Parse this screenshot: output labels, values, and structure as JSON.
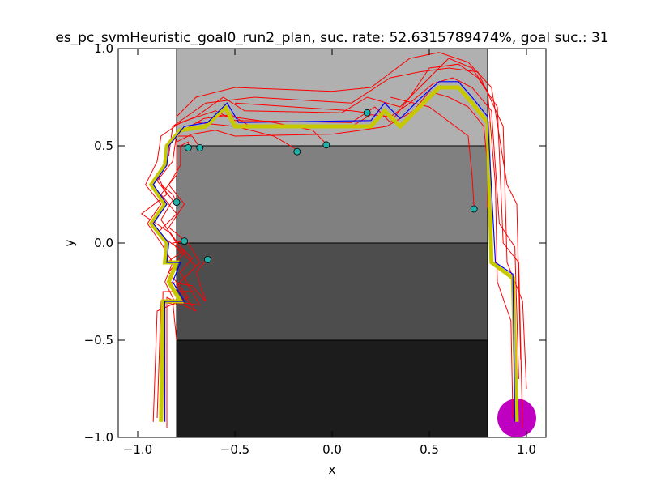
{
  "chart_data": {
    "type": "line",
    "title": "es_pc_svmHeuristic_goal0_run2_plan, suc. rate: 52.6315789474%, goal suc.: 31",
    "xlabel": "x",
    "ylabel": "y",
    "xlim": [
      -1.1,
      1.1
    ],
    "ylim": [
      -1.0,
      1.0
    ],
    "xticks": [
      {
        "value": -1.0,
        "label": "−1.0"
      },
      {
        "value": -0.5,
        "label": "−0.5"
      },
      {
        "value": 0.0,
        "label": "0.0"
      },
      {
        "value": 0.5,
        "label": "0.5"
      },
      {
        "value": 1.0,
        "label": "1.0"
      }
    ],
    "yticks": [
      {
        "value": -1.0,
        "label": "−1.0"
      },
      {
        "value": -0.5,
        "label": "−0.5"
      },
      {
        "value": 0.0,
        "label": "0.0"
      },
      {
        "value": 0.5,
        "label": "0.5"
      },
      {
        "value": 1.0,
        "label": "1.0"
      }
    ],
    "grid": false,
    "regions": [
      {
        "x": [
          -0.8,
          0.8
        ],
        "y": [
          0.5,
          1.0
        ],
        "color": "#b0b0b0"
      },
      {
        "x": [
          -0.8,
          0.8
        ],
        "y": [
          0.0,
          0.5
        ],
        "color": "#808080"
      },
      {
        "x": [
          -0.8,
          0.8
        ],
        "y": [
          -0.5,
          0.0
        ],
        "color": "#4d4d4d"
      },
      {
        "x": [
          -0.8,
          0.8
        ],
        "y": [
          -1.0,
          -0.5
        ],
        "color": "#1c1c1c"
      }
    ],
    "goal": {
      "x": 0.95,
      "y": -0.9,
      "radius": 0.1,
      "color": "#c000c0"
    },
    "plan_yellow": {
      "color": "#c8c800",
      "points": [
        [
          -0.88,
          -0.92
        ],
        [
          -0.87,
          -0.3
        ],
        [
          -0.78,
          -0.3
        ],
        [
          -0.84,
          -0.2
        ],
        [
          -0.8,
          -0.1
        ],
        [
          -0.86,
          -0.1
        ],
        [
          -0.85,
          0.0
        ],
        [
          -0.93,
          0.1
        ],
        [
          -0.86,
          0.2
        ],
        [
          -0.93,
          0.3
        ],
        [
          -0.86,
          0.4
        ],
        [
          -0.85,
          0.5
        ],
        [
          -0.78,
          0.58
        ],
        [
          -0.65,
          0.6
        ],
        [
          -0.55,
          0.7
        ],
        [
          -0.5,
          0.6
        ],
        [
          0.2,
          0.6
        ],
        [
          0.27,
          0.68
        ],
        [
          0.35,
          0.6
        ],
        [
          0.45,
          0.7
        ],
        [
          0.55,
          0.8
        ],
        [
          0.65,
          0.8
        ],
        [
          0.72,
          0.72
        ],
        [
          0.8,
          0.62
        ],
        [
          0.82,
          -0.1
        ],
        [
          0.93,
          -0.18
        ],
        [
          0.95,
          -0.92
        ]
      ]
    },
    "plan_blue": {
      "color": "#0000ff",
      "points": [
        [
          -0.86,
          -0.92
        ],
        [
          -0.86,
          -0.3
        ],
        [
          -0.76,
          -0.3
        ],
        [
          -0.82,
          -0.2
        ],
        [
          -0.78,
          -0.1
        ],
        [
          -0.85,
          -0.1
        ],
        [
          -0.84,
          0.0
        ],
        [
          -0.92,
          0.1
        ],
        [
          -0.85,
          0.2
        ],
        [
          -0.92,
          0.3
        ],
        [
          -0.85,
          0.4
        ],
        [
          -0.84,
          0.5
        ],
        [
          -0.76,
          0.6
        ],
        [
          -0.64,
          0.62
        ],
        [
          -0.54,
          0.72
        ],
        [
          -0.48,
          0.62
        ],
        [
          0.2,
          0.63
        ],
        [
          0.27,
          0.72
        ],
        [
          0.35,
          0.64
        ],
        [
          0.45,
          0.74
        ],
        [
          0.55,
          0.83
        ],
        [
          0.65,
          0.83
        ],
        [
          0.72,
          0.75
        ],
        [
          0.8,
          0.65
        ],
        [
          0.84,
          -0.1
        ],
        [
          0.93,
          -0.16
        ],
        [
          0.94,
          -0.92
        ]
      ]
    },
    "trajectories_red": {
      "color": "#ff0000",
      "series": [
        [
          [
            -0.9,
            -0.9
          ],
          [
            -0.88,
            -0.3
          ],
          [
            -0.8,
            -0.32
          ],
          [
            -0.86,
            -0.2
          ],
          [
            -0.82,
            -0.1
          ],
          [
            -0.88,
            0.0
          ],
          [
            -0.95,
            0.1
          ],
          [
            -0.88,
            0.2
          ],
          [
            -0.96,
            0.3
          ],
          [
            -0.9,
            0.42
          ],
          [
            -0.88,
            0.55
          ],
          [
            -0.78,
            0.62
          ],
          [
            -0.6,
            0.68
          ],
          [
            -0.5,
            0.63
          ],
          [
            0.1,
            0.62
          ],
          [
            0.22,
            0.7
          ],
          [
            0.3,
            0.62
          ],
          [
            0.4,
            0.75
          ],
          [
            0.5,
            0.9
          ],
          [
            0.65,
            0.92
          ],
          [
            0.75,
            0.85
          ],
          [
            0.85,
            0.7
          ],
          [
            0.88,
            0.0
          ],
          [
            0.96,
            -0.1
          ],
          [
            0.98,
            -0.95
          ]
        ],
        [
          [
            -0.92,
            -0.92
          ],
          [
            -0.9,
            -0.35
          ],
          [
            -0.74,
            -0.28
          ],
          [
            -0.84,
            -0.15
          ],
          [
            -0.76,
            -0.05
          ],
          [
            -0.83,
            0.05
          ],
          [
            -0.98,
            0.15
          ],
          [
            -0.85,
            0.25
          ],
          [
            -0.9,
            0.35
          ],
          [
            -0.84,
            0.45
          ],
          [
            -0.82,
            0.6
          ],
          [
            -0.7,
            0.65
          ],
          [
            -0.56,
            0.75
          ],
          [
            -0.45,
            0.68
          ],
          [
            0.05,
            0.67
          ],
          [
            0.18,
            0.75
          ],
          [
            0.35,
            0.7
          ],
          [
            0.5,
            0.85
          ],
          [
            0.6,
            0.95
          ],
          [
            0.72,
            0.9
          ],
          [
            0.8,
            0.78
          ],
          [
            0.84,
            0.3
          ],
          [
            0.85,
            -0.2
          ],
          [
            0.92,
            -0.4
          ],
          [
            0.93,
            -0.9
          ]
        ],
        [
          [
            -0.85,
            -0.95
          ],
          [
            -0.85,
            -0.28
          ],
          [
            -0.7,
            -0.35
          ],
          [
            -0.8,
            -0.22
          ],
          [
            -0.7,
            -0.12
          ],
          [
            -0.8,
            -0.02
          ],
          [
            -0.9,
            0.05
          ],
          [
            -0.8,
            0.15
          ],
          [
            -0.88,
            0.25
          ],
          [
            -0.8,
            0.35
          ],
          [
            -0.8,
            0.52
          ],
          [
            -0.72,
            0.56
          ],
          [
            -0.6,
            0.58
          ],
          [
            -0.5,
            0.55
          ],
          [
            0.0,
            0.56
          ],
          [
            0.15,
            0.58
          ],
          [
            0.28,
            0.6
          ],
          [
            0.42,
            0.68
          ],
          [
            0.5,
            0.78
          ],
          [
            0.6,
            0.75
          ],
          [
            0.7,
            0.7
          ],
          [
            0.78,
            0.6
          ],
          [
            0.8,
            0.4
          ],
          [
            0.8,
            0.18
          ]
        ],
        [
          [
            -0.88,
            -0.88
          ],
          [
            -0.87,
            -0.25
          ],
          [
            -0.72,
            -0.25
          ],
          [
            -0.78,
            -0.15
          ],
          [
            -0.72,
            -0.08
          ],
          [
            -0.8,
            0.0
          ],
          [
            -0.88,
            0.12
          ],
          [
            -0.82,
            0.22
          ],
          [
            -0.9,
            0.32
          ],
          [
            -0.82,
            0.42
          ],
          [
            -0.8,
            0.56
          ],
          [
            -0.66,
            0.64
          ],
          [
            -0.52,
            0.66
          ],
          [
            -0.42,
            0.6
          ],
          [
            0.1,
            0.6
          ],
          [
            0.2,
            0.66
          ],
          [
            0.3,
            0.65
          ],
          [
            0.4,
            0.72
          ],
          [
            0.52,
            0.82
          ],
          [
            0.62,
            0.85
          ],
          [
            0.72,
            0.8
          ],
          [
            0.82,
            0.68
          ],
          [
            0.86,
            0.1
          ],
          [
            0.94,
            -0.02
          ],
          [
            0.96,
            -0.7
          ]
        ],
        [
          [
            -0.8,
            -0.5
          ],
          [
            -0.82,
            -0.3
          ],
          [
            -0.68,
            -0.32
          ],
          [
            -0.76,
            -0.18
          ],
          [
            -0.68,
            -0.1
          ],
          [
            -0.74,
            0.0
          ],
          [
            -0.84,
            0.08
          ],
          [
            -0.76,
            0.2
          ],
          [
            -0.84,
            0.3
          ],
          [
            -0.78,
            0.4
          ],
          [
            -0.78,
            0.5
          ],
          [
            -0.74,
            0.52
          ],
          [
            -0.74,
            0.49
          ]
        ],
        [
          [
            -0.84,
            -0.2
          ],
          [
            -0.72,
            -0.22
          ],
          [
            -0.65,
            -0.3
          ],
          [
            -0.7,
            -0.15
          ],
          [
            -0.64,
            -0.08
          ]
        ],
        [
          [
            -0.85,
            -0.1
          ],
          [
            -0.78,
            -0.05
          ],
          [
            -0.82,
            0.0
          ],
          [
            -0.76,
            0.01
          ]
        ],
        [
          [
            -0.88,
            0.3
          ],
          [
            -0.82,
            0.25
          ],
          [
            -0.8,
            0.21
          ]
        ],
        [
          [
            -0.8,
            0.55
          ],
          [
            -0.72,
            0.55
          ],
          [
            -0.68,
            0.49
          ]
        ],
        [
          [
            -0.7,
            0.62
          ],
          [
            -0.5,
            0.6
          ],
          [
            -0.3,
            0.55
          ],
          [
            -0.18,
            0.48
          ]
        ],
        [
          [
            -0.6,
            0.66
          ],
          [
            -0.3,
            0.62
          ],
          [
            -0.1,
            0.58
          ],
          [
            -0.03,
            0.51
          ]
        ],
        [
          [
            -0.5,
            0.72
          ],
          [
            -0.2,
            0.7
          ],
          [
            0.1,
            0.68
          ],
          [
            0.18,
            0.67
          ]
        ],
        [
          [
            0.3,
            0.75
          ],
          [
            0.5,
            0.7
          ],
          [
            0.7,
            0.55
          ],
          [
            0.72,
            0.35
          ],
          [
            0.73,
            0.18
          ]
        ],
        [
          [
            -0.8,
            0.65
          ],
          [
            -0.7,
            0.75
          ],
          [
            -0.5,
            0.8
          ],
          [
            0.0,
            0.78
          ],
          [
            0.2,
            0.8
          ],
          [
            0.4,
            0.95
          ],
          [
            0.55,
            0.98
          ],
          [
            0.7,
            0.93
          ],
          [
            0.82,
            0.8
          ],
          [
            0.9,
            0.3
          ],
          [
            0.95,
            0.2
          ],
          [
            0.97,
            -0.6
          ]
        ],
        [
          [
            -0.82,
            0.6
          ],
          [
            -0.65,
            0.72
          ],
          [
            -0.4,
            0.75
          ],
          [
            0.1,
            0.72
          ],
          [
            0.3,
            0.85
          ],
          [
            0.45,
            0.88
          ],
          [
            0.6,
            0.9
          ],
          [
            0.75,
            0.88
          ],
          [
            0.88,
            0.6
          ],
          [
            0.9,
            -0.1
          ],
          [
            0.98,
            -0.3
          ],
          [
            1.0,
            -0.75
          ]
        ]
      ]
    },
    "endpoints": {
      "color": "#20b2aa",
      "points": [
        [
          -0.74,
          0.49
        ],
        [
          -0.68,
          0.49
        ],
        [
          -0.18,
          0.47
        ],
        [
          -0.03,
          0.505
        ],
        [
          0.18,
          0.67
        ],
        [
          0.73,
          0.175
        ],
        [
          -0.8,
          0.21
        ],
        [
          -0.76,
          0.01
        ],
        [
          -0.64,
          -0.085
        ]
      ]
    }
  }
}
